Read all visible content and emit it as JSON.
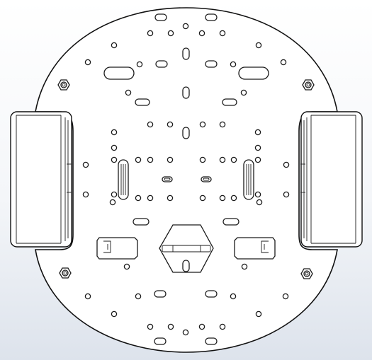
{
  "view": {
    "background_top": "#ffffff",
    "background_bottom": "#dde3ec",
    "line_color": "#1a1a1a"
  },
  "parts": {
    "chassis_plate": "chassis-plate",
    "wheels": [
      "left-wheel",
      "right-wheel"
    ],
    "hex_standoffs": 4
  }
}
